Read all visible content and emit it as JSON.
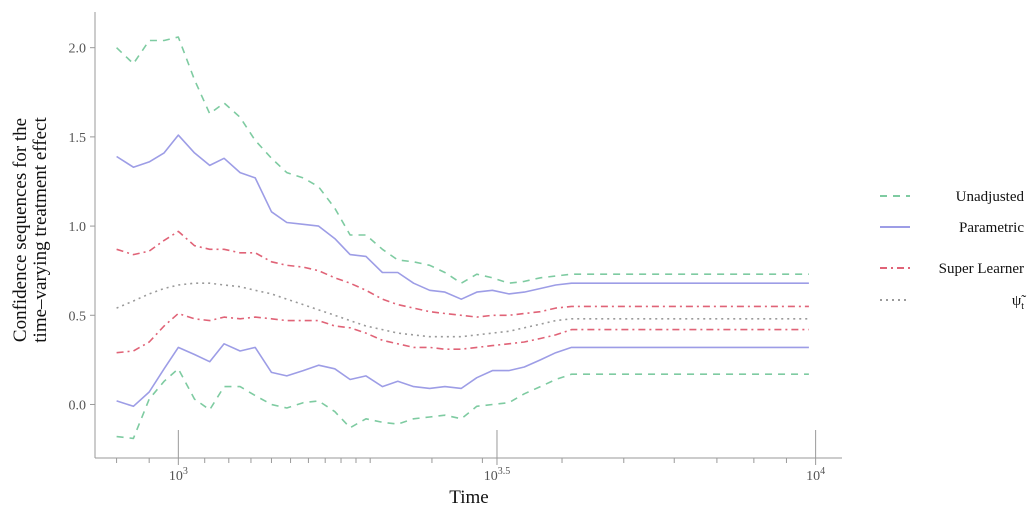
{
  "chart_data": {
    "type": "line",
    "xlabel": "Time",
    "ylabel_lines": [
      "Confidence sequences for the",
      "time–varying treatment effect"
    ],
    "x_scale": "log10",
    "xlim": [
      740,
      11000
    ],
    "ylim": [
      -0.3,
      2.2
    ],
    "x_ticks": [
      {
        "value": 1000,
        "base": "10",
        "exp": ""
      },
      {
        "value": 3162.28,
        "base": "10",
        "exp": "3.5"
      },
      {
        "value": 10000,
        "base": "10",
        "exp": "4"
      }
    ],
    "x_ticks_display": [
      {
        "base": "10",
        "exp": "3"
      },
      {
        "base": "10",
        "exp": "3.5"
      },
      {
        "base": "10",
        "exp": "4"
      }
    ],
    "x_minor_ticks": [
      800,
      900,
      1100,
      1200,
      1300,
      1400,
      1500,
      1600,
      1700,
      1800,
      1900,
      2000,
      2500,
      3000,
      4000,
      5000,
      6000,
      7000,
      8000,
      9000
    ],
    "y_ticks": [
      {
        "value": 0.0,
        "label": "0.0"
      },
      {
        "value": 0.5,
        "label": "0.5"
      },
      {
        "value": 1.0,
        "label": "1.0"
      },
      {
        "value": 1.5,
        "label": "1.5"
      },
      {
        "value": 2.0,
        "label": "2.0"
      }
    ],
    "x": [
      800,
      850,
      900,
      950,
      1000,
      1060,
      1120,
      1180,
      1250,
      1320,
      1400,
      1480,
      1570,
      1660,
      1760,
      1860,
      1970,
      2090,
      2210,
      2340,
      2480,
      2620,
      2780,
      2940,
      3110,
      3300,
      3490,
      3700,
      3910,
      4140,
      4390,
      4640,
      4920,
      5200,
      5510,
      5830,
      6180,
      6540,
      6920,
      7330,
      7760,
      8220,
      8710,
      9220,
      9760
    ],
    "series": [
      {
        "name": "Unadjusted",
        "style": "dashed",
        "color": "#7ecba1",
        "upper": [
          2.0,
          1.91,
          2.04,
          2.04,
          2.06,
          1.82,
          1.63,
          1.69,
          1.61,
          1.48,
          1.38,
          1.3,
          1.27,
          1.22,
          1.1,
          0.95,
          0.95,
          0.87,
          0.81,
          0.8,
          0.78,
          0.74,
          0.68,
          0.73,
          0.71,
          0.68,
          0.69,
          0.71,
          0.72,
          0.73,
          0.73,
          0.73,
          0.73,
          0.73,
          0.73,
          0.73,
          0.73,
          0.73,
          0.73,
          0.73,
          0.73,
          0.73,
          0.73,
          0.73,
          0.73
        ],
        "lower": [
          -0.18,
          -0.19,
          0.03,
          0.13,
          0.2,
          0.03,
          -0.03,
          0.1,
          0.1,
          0.05,
          0.0,
          -0.02,
          0.01,
          0.02,
          -0.04,
          -0.13,
          -0.08,
          -0.1,
          -0.11,
          -0.08,
          -0.07,
          -0.06,
          -0.08,
          -0.01,
          0.0,
          0.01,
          0.06,
          0.1,
          0.14,
          0.17,
          0.17,
          0.17,
          0.17,
          0.17,
          0.17,
          0.17,
          0.17,
          0.17,
          0.17,
          0.17,
          0.17,
          0.17,
          0.17,
          0.17,
          0.17
        ]
      },
      {
        "name": "Parametric",
        "style": "solid",
        "color": "#9d9de6",
        "upper": [
          1.39,
          1.33,
          1.36,
          1.41,
          1.51,
          1.41,
          1.34,
          1.38,
          1.3,
          1.27,
          1.08,
          1.02,
          1.01,
          1.0,
          0.93,
          0.84,
          0.83,
          0.74,
          0.74,
          0.68,
          0.64,
          0.63,
          0.59,
          0.63,
          0.64,
          0.62,
          0.63,
          0.65,
          0.67,
          0.68,
          0.68,
          0.68,
          0.68,
          0.68,
          0.68,
          0.68,
          0.68,
          0.68,
          0.68,
          0.68,
          0.68,
          0.68,
          0.68,
          0.68,
          0.68
        ],
        "lower": [
          0.02,
          -0.01,
          0.07,
          0.2,
          0.32,
          0.28,
          0.24,
          0.34,
          0.3,
          0.32,
          0.18,
          0.16,
          0.19,
          0.22,
          0.2,
          0.14,
          0.16,
          0.1,
          0.13,
          0.1,
          0.09,
          0.1,
          0.09,
          0.15,
          0.19,
          0.19,
          0.21,
          0.25,
          0.29,
          0.32,
          0.32,
          0.32,
          0.32,
          0.32,
          0.32,
          0.32,
          0.32,
          0.32,
          0.32,
          0.32,
          0.32,
          0.32,
          0.32,
          0.32,
          0.32
        ]
      },
      {
        "name": "Super Learner",
        "style": "dashdot",
        "color": "#e06377",
        "upper": [
          0.87,
          0.84,
          0.86,
          0.92,
          0.97,
          0.89,
          0.87,
          0.87,
          0.85,
          0.85,
          0.8,
          0.78,
          0.77,
          0.75,
          0.71,
          0.68,
          0.64,
          0.59,
          0.56,
          0.54,
          0.52,
          0.51,
          0.5,
          0.49,
          0.5,
          0.5,
          0.51,
          0.52,
          0.54,
          0.55,
          0.55,
          0.55,
          0.55,
          0.55,
          0.55,
          0.55,
          0.55,
          0.55,
          0.55,
          0.55,
          0.55,
          0.55,
          0.55,
          0.55,
          0.55
        ],
        "lower": [
          0.29,
          0.3,
          0.35,
          0.44,
          0.51,
          0.48,
          0.47,
          0.49,
          0.48,
          0.49,
          0.48,
          0.47,
          0.47,
          0.47,
          0.44,
          0.43,
          0.4,
          0.36,
          0.34,
          0.32,
          0.32,
          0.31,
          0.31,
          0.32,
          0.33,
          0.34,
          0.35,
          0.37,
          0.39,
          0.42,
          0.42,
          0.42,
          0.42,
          0.42,
          0.42,
          0.42,
          0.42,
          0.42,
          0.42,
          0.42,
          0.42,
          0.42,
          0.42,
          0.42,
          0.42
        ]
      },
      {
        "name": "ψ̃",
        "name_sub": "t",
        "style": "dotted",
        "color": "#9a9a9a",
        "values": [
          0.54,
          0.58,
          0.62,
          0.65,
          0.67,
          0.68,
          0.68,
          0.67,
          0.66,
          0.64,
          0.62,
          0.59,
          0.56,
          0.53,
          0.5,
          0.47,
          0.44,
          0.42,
          0.4,
          0.39,
          0.38,
          0.38,
          0.38,
          0.39,
          0.4,
          0.41,
          0.43,
          0.45,
          0.47,
          0.48,
          0.48,
          0.48,
          0.48,
          0.48,
          0.48,
          0.48,
          0.48,
          0.48,
          0.48,
          0.48,
          0.48,
          0.48,
          0.48,
          0.48,
          0.48
        ]
      }
    ],
    "legend_position": "right",
    "grid": false
  }
}
